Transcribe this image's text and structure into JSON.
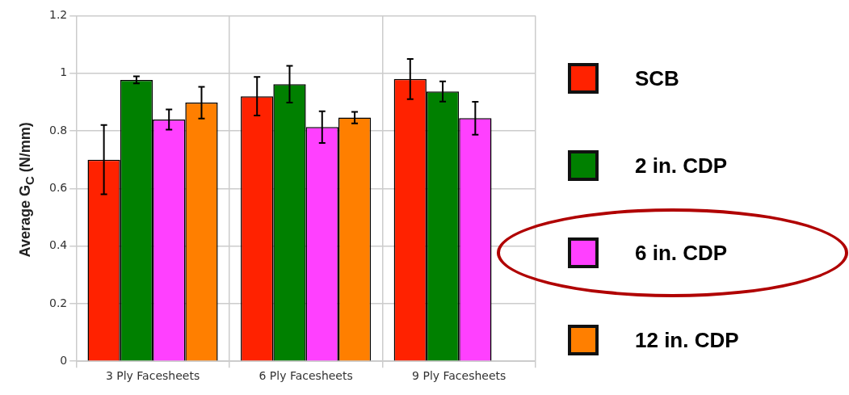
{
  "chart_data": {
    "type": "bar",
    "ylabel": "Average G$_{C}$ (N/mm)",
    "categories": [
      "3 Ply Facesheets",
      "6 Ply Facesheets",
      "9 Ply Facesheets"
    ],
    "series": [
      {
        "name": "SCB",
        "color": "#ff2200",
        "values": [
          0.7,
          0.92,
          0.98
        ],
        "errors": [
          0.12,
          0.067,
          0.07
        ]
      },
      {
        "name": "2 in. CDP",
        "color": "#008000",
        "values": [
          0.977,
          0.962,
          0.937
        ],
        "errors": [
          0.012,
          0.064,
          0.035
        ]
      },
      {
        "name": "6 in. CDP",
        "color": "#ff40ff",
        "values": [
          0.839,
          0.813,
          0.844
        ],
        "errors": [
          0.035,
          0.055,
          0.057
        ]
      },
      {
        "name": "12 in. CDP",
        "color": "#ff7f00",
        "values": [
          0.898,
          0.846,
          null
        ],
        "errors": [
          0.055,
          0.02,
          null
        ]
      }
    ],
    "ylim": [
      0,
      1.2
    ],
    "yticks": [
      0,
      0.2,
      0.4,
      0.6,
      0.8,
      1,
      1.2
    ],
    "grid": true,
    "legend": "right"
  }
}
